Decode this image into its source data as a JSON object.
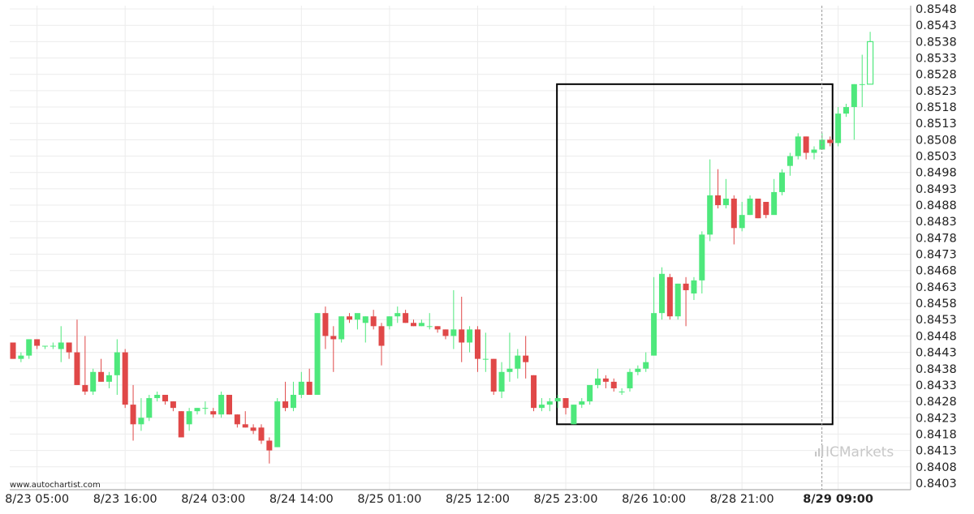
{
  "colors": {
    "up": "#4ee87c",
    "down": "#e04848",
    "grid": "#ececec",
    "axis": "#999999",
    "box": "#000000",
    "text": "#222222",
    "brand": "#c8c8c8"
  },
  "watermark": "www.autochartist.com",
  "brand": {
    "prefix": "IC",
    "name": "Markets",
    "icon": "bar-chart-icon"
  },
  "chart_data": {
    "type": "candlestick",
    "ylim": [
      0.8401,
      0.8549
    ],
    "y_ticks": [
      "0.8548",
      "0.8543",
      "0.8538",
      "0.8533",
      "0.8528",
      "0.8523",
      "0.8518",
      "0.8513",
      "0.8508",
      "0.8503",
      "0.8498",
      "0.8493",
      "0.8488",
      "0.8483",
      "0.8478",
      "0.8473",
      "0.8468",
      "0.8463",
      "0.8458",
      "0.8453",
      "0.8448",
      "0.8443",
      "0.8438",
      "0.8433",
      "0.8428",
      "0.8423",
      "0.8418",
      "0.8413",
      "0.8408",
      "0.8403"
    ],
    "x_ticks": [
      {
        "label": "8/23 05:00",
        "index": 3,
        "bold": false
      },
      {
        "label": "8/23 16:00",
        "index": 14,
        "bold": false
      },
      {
        "label": "8/24 03:00",
        "index": 25,
        "bold": false
      },
      {
        "label": "8/24 14:00",
        "index": 36,
        "bold": false
      },
      {
        "label": "8/25 01:00",
        "index": 47,
        "bold": false
      },
      {
        "label": "8/25 12:00",
        "index": 58,
        "bold": false
      },
      {
        "label": "8/25 23:00",
        "index": 69,
        "bold": false
      },
      {
        "label": "8/26 10:00",
        "index": 80,
        "bold": false
      },
      {
        "label": "8/28 21:00",
        "index": 91,
        "bold": false
      },
      {
        "label": "8/29 09:00",
        "index": 103,
        "bold": true
      }
    ],
    "pattern_box": {
      "from_index": 68,
      "to_index": 102,
      "top": 0.8525,
      "bottom": 0.8421
    },
    "current_index": 103,
    "candles": [
      [
        0.8446,
        0.8446,
        0.8441,
        0.8441
      ],
      [
        0.8441,
        0.8443,
        0.844,
        0.8442
      ],
      [
        0.8442,
        0.8447,
        0.8441,
        0.8447
      ],
      [
        0.8447,
        0.8447,
        0.8444,
        0.8445
      ],
      [
        0.8445,
        0.8445,
        0.8444,
        0.8445
      ],
      [
        0.8445,
        0.8446,
        0.8444,
        0.8445
      ],
      [
        0.8444,
        0.8451,
        0.844,
        0.8446
      ],
      [
        0.8446,
        0.8446,
        0.8441,
        0.8443
      ],
      [
        0.8443,
        0.8453,
        0.8433,
        0.8433
      ],
      [
        0.8433,
        0.8448,
        0.843,
        0.8431
      ],
      [
        0.8431,
        0.8438,
        0.843,
        0.8437
      ],
      [
        0.8437,
        0.8441,
        0.8434,
        0.8434
      ],
      [
        0.8434,
        0.8437,
        0.8432,
        0.8436
      ],
      [
        0.8436,
        0.8447,
        0.843,
        0.8443
      ],
      [
        0.8443,
        0.8444,
        0.8426,
        0.8427
      ],
      [
        0.8427,
        0.8433,
        0.8416,
        0.8421
      ],
      [
        0.8421,
        0.8429,
        0.8419,
        0.8423
      ],
      [
        0.8423,
        0.843,
        0.8422,
        0.8429
      ],
      [
        0.8429,
        0.8431,
        0.8428,
        0.843
      ],
      [
        0.843,
        0.843,
        0.8427,
        0.8428
      ],
      [
        0.8428,
        0.8428,
        0.8425,
        0.8426
      ],
      [
        0.8425,
        0.8425,
        0.8417,
        0.8417
      ],
      [
        0.8421,
        0.8426,
        0.8419,
        0.8425
      ],
      [
        0.8425,
        0.8426,
        0.8424,
        0.8426
      ],
      [
        0.8426,
        0.8428,
        0.8424,
        0.8426
      ],
      [
        0.8425,
        0.8426,
        0.8423,
        0.8424
      ],
      [
        0.8424,
        0.8431,
        0.8423,
        0.843
      ],
      [
        0.843,
        0.843,
        0.8424,
        0.8424
      ],
      [
        0.8424,
        0.8424,
        0.842,
        0.8421
      ],
      [
        0.8421,
        0.8425,
        0.842,
        0.842
      ],
      [
        0.842,
        0.8421,
        0.8418,
        0.8419
      ],
      [
        0.842,
        0.8421,
        0.8415,
        0.8416
      ],
      [
        0.8416,
        0.8417,
        0.8409,
        0.8413
      ],
      [
        0.8414,
        0.8429,
        0.8414,
        0.8428
      ],
      [
        0.8428,
        0.8434,
        0.8425,
        0.8426
      ],
      [
        0.8426,
        0.8434,
        0.8425,
        0.843
      ],
      [
        0.843,
        0.8437,
        0.8429,
        0.8434
      ],
      [
        0.8434,
        0.8438,
        0.843,
        0.843
      ],
      [
        0.843,
        0.8455,
        0.843,
        0.8455
      ],
      [
        0.8455,
        0.8457,
        0.8444,
        0.8448
      ],
      [
        0.8448,
        0.8451,
        0.8437,
        0.8447
      ],
      [
        0.8447,
        0.8454,
        0.8446,
        0.8454
      ],
      [
        0.8454,
        0.8455,
        0.8452,
        0.8453
      ],
      [
        0.8453,
        0.8454,
        0.845,
        0.8455
      ],
      [
        0.8452,
        0.8454,
        0.8446,
        0.8454
      ],
      [
        0.8454,
        0.8456,
        0.845,
        0.8451
      ],
      [
        0.8451,
        0.8452,
        0.8439,
        0.8445
      ],
      [
        0.8451,
        0.8454,
        0.845,
        0.8454
      ],
      [
        0.8454,
        0.8457,
        0.8452,
        0.8455
      ],
      [
        0.8455,
        0.8456,
        0.8452,
        0.8452
      ],
      [
        0.8452,
        0.8453,
        0.8451,
        0.8451
      ],
      [
        0.8451,
        0.8453,
        0.8451,
        0.8452
      ],
      [
        0.8451,
        0.8455,
        0.845,
        0.8451
      ],
      [
        0.8451,
        0.8451,
        0.8449,
        0.845
      ],
      [
        0.845,
        0.845,
        0.8447,
        0.8448
      ],
      [
        0.8448,
        0.8462,
        0.8444,
        0.845
      ],
      [
        0.845,
        0.846,
        0.844,
        0.8446
      ],
      [
        0.8446,
        0.8451,
        0.8443,
        0.845
      ],
      [
        0.845,
        0.8451,
        0.8437,
        0.8441
      ],
      [
        0.8441,
        0.8449,
        0.8437,
        0.8441
      ],
      [
        0.8441,
        0.8441,
        0.843,
        0.8431
      ],
      [
        0.8431,
        0.844,
        0.8429,
        0.8437
      ],
      [
        0.8437,
        0.8449,
        0.8434,
        0.8438
      ],
      [
        0.8438,
        0.8444,
        0.8435,
        0.8442
      ],
      [
        0.8442,
        0.8448,
        0.8435,
        0.844
      ],
      [
        0.8436,
        0.8436,
        0.8425,
        0.8426
      ],
      [
        0.8426,
        0.8429,
        0.8425,
        0.8427
      ],
      [
        0.8427,
        0.8429,
        0.8425,
        0.8428
      ],
      [
        0.8428,
        0.843,
        0.8426,
        0.8429
      ],
      [
        0.8429,
        0.8429,
        0.8424,
        0.8426
      ],
      [
        0.8421,
        0.8427,
        0.8421,
        0.8427
      ],
      [
        0.8427,
        0.8429,
        0.8426,
        0.8428
      ],
      [
        0.8428,
        0.8432,
        0.8427,
        0.8433
      ],
      [
        0.8433,
        0.8438,
        0.8432,
        0.8435
      ],
      [
        0.8435,
        0.8436,
        0.8432,
        0.8434
      ],
      [
        0.8434,
        0.8435,
        0.8431,
        0.8432
      ],
      [
        0.8431,
        0.8432,
        0.843,
        0.8431
      ],
      [
        0.8432,
        0.8438,
        0.8431,
        0.8437
      ],
      [
        0.8437,
        0.8439,
        0.8436,
        0.8438
      ],
      [
        0.8438,
        0.8443,
        0.8437,
        0.844
      ],
      [
        0.8442,
        0.8466,
        0.8442,
        0.8455
      ],
      [
        0.8455,
        0.8469,
        0.8453,
        0.8467
      ],
      [
        0.8466,
        0.8467,
        0.8453,
        0.8454
      ],
      [
        0.8454,
        0.8464,
        0.8453,
        0.8464
      ],
      [
        0.8464,
        0.8466,
        0.8451,
        0.8462
      ],
      [
        0.8461,
        0.8466,
        0.8459,
        0.8465
      ],
      [
        0.8465,
        0.848,
        0.8461,
        0.8479
      ],
      [
        0.8479,
        0.8502,
        0.8477,
        0.8491
      ],
      [
        0.8491,
        0.8499,
        0.8487,
        0.8488
      ],
      [
        0.8488,
        0.8496,
        0.8487,
        0.849
      ],
      [
        0.849,
        0.8491,
        0.8476,
        0.8481
      ],
      [
        0.8481,
        0.8489,
        0.848,
        0.8485
      ],
      [
        0.8485,
        0.8491,
        0.8485,
        0.849
      ],
      [
        0.849,
        0.849,
        0.8484,
        0.8484
      ],
      [
        0.8489,
        0.8489,
        0.8484,
        0.8485
      ],
      [
        0.8485,
        0.8496,
        0.8486,
        0.8492
      ],
      [
        0.8492,
        0.8499,
        0.8491,
        0.8498
      ],
      [
        0.85,
        0.8504,
        0.8497,
        0.8503
      ],
      [
        0.8503,
        0.851,
        0.8502,
        0.8509
      ],
      [
        0.8509,
        0.8509,
        0.8502,
        0.8504
      ],
      [
        0.8504,
        0.8506,
        0.8502,
        0.8505
      ],
      [
        0.8505,
        0.851,
        0.8505,
        0.8508
      ],
      [
        0.8508,
        0.8509,
        0.8506,
        0.8507
      ],
      [
        0.8507,
        0.8518,
        0.8506,
        0.8516
      ],
      [
        0.8516,
        0.8519,
        0.8515,
        0.8518
      ],
      [
        0.8518,
        0.8525,
        0.8508,
        0.8525
      ],
      [
        0.8525,
        0.8534,
        0.8518,
        0.8525
      ],
      [
        0.8525,
        0.8541,
        0.8525,
        0.8538
      ]
    ]
  }
}
